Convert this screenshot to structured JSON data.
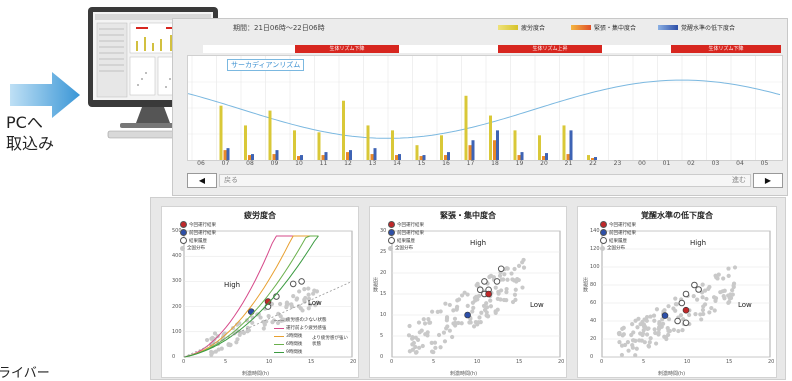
{
  "left": {
    "caption_lines": [
      "PCへ",
      "取込み"
    ],
    "bottom_caption": "ライバー"
  },
  "top_panel": {
    "period_label": "期間：21日06時～22日06時",
    "legend": [
      {
        "label": "疲労度合",
        "color": "#e8d640"
      },
      {
        "label": "緊張・集中度合",
        "color": "#e8892a"
      },
      {
        "label": "覚醒水準の低下度合",
        "color": "#3e63b4"
      }
    ],
    "rhythm_bars": [
      {
        "label": "生体リズム下降",
        "start": 6,
        "end": 10
      },
      {
        "label": "生体リズム上昇",
        "start": 14,
        "end": 18
      },
      {
        "label": "生体リズム下降",
        "start": 22,
        "end": 26
      }
    ],
    "circadian_label": "サーカディアンリズム",
    "hours": [
      "06",
      "07",
      "08",
      "09",
      "10",
      "11",
      "12",
      "13",
      "14",
      "15",
      "16",
      "17",
      "18",
      "19",
      "20",
      "21",
      "22",
      "23",
      "00",
      "01",
      "02",
      "03",
      "04",
      "05"
    ],
    "nav": {
      "prev": "◀",
      "next": "▶",
      "back": "戻る",
      "forward": "進む"
    },
    "bars": [
      {
        "hour": 7,
        "fatigue": 0.55,
        "tension": 0.1,
        "arousal": 0.12
      },
      {
        "hour": 8,
        "fatigue": 0.35,
        "tension": 0.05,
        "arousal": 0.06
      },
      {
        "hour": 9,
        "fatigue": 0.5,
        "tension": 0.06,
        "arousal": 0.1
      },
      {
        "hour": 10,
        "fatigue": 0.3,
        "tension": 0.04,
        "arousal": 0.05
      },
      {
        "hour": 11,
        "fatigue": 0.28,
        "tension": 0.05,
        "arousal": 0.08
      },
      {
        "hour": 12,
        "fatigue": 0.6,
        "tension": 0.08,
        "arousal": 0.1
      },
      {
        "hour": 13,
        "fatigue": 0.35,
        "tension": 0.06,
        "arousal": 0.12
      },
      {
        "hour": 14,
        "fatigue": 0.3,
        "tension": 0.05,
        "arousal": 0.06
      },
      {
        "hour": 15,
        "fatigue": 0.15,
        "tension": 0.04,
        "arousal": 0.05
      },
      {
        "hour": 16,
        "fatigue": 0.25,
        "tension": 0.05,
        "arousal": 0.08
      },
      {
        "hour": 17,
        "fatigue": 0.65,
        "tension": 0.15,
        "arousal": 0.2
      },
      {
        "hour": 18,
        "fatigue": 0.45,
        "tension": 0.2,
        "arousal": 0.3
      },
      {
        "hour": 19,
        "fatigue": 0.3,
        "tension": 0.05,
        "arousal": 0.08
      },
      {
        "hour": 20,
        "fatigue": 0.25,
        "tension": 0.04,
        "arousal": 0.07
      },
      {
        "hour": 21,
        "fatigue": 0.35,
        "tension": 0.06,
        "arousal": 0.3
      },
      {
        "hour": 22,
        "fatigue": 0.05,
        "tension": 0.02,
        "arousal": 0.03
      }
    ]
  },
  "charts": [
    {
      "title": "疲労度合",
      "xlabel": "刺激時間(h)",
      "ylabel": "",
      "xticks": [
        "0",
        "5",
        "10",
        "15",
        "20"
      ],
      "yticks": [
        "0",
        "100",
        "200",
        "300",
        "400",
        "500"
      ],
      "legend": [
        {
          "label": "今回運行結果",
          "color": "#c0282a"
        },
        {
          "label": "前回運行結果",
          "color": "#2d4fa8"
        },
        {
          "label": "結果履歴",
          "color": "#ffffff"
        },
        {
          "label": "全国分布",
          "color": "#c8c8c8"
        }
      ],
      "high_label": "High",
      "low_label": "Low",
      "curve_legend": [
        {
          "label": "疲労感の少ない状態",
          "color": "#999999"
        },
        {
          "label": "運行前より疲労感強",
          "color": "#d64a8a"
        },
        {
          "label": "3時間後",
          "color": "#e8a030"
        },
        {
          "label": "6時間後",
          "color": "#6ab04c"
        },
        {
          "label": "9時間後",
          "color": "#3a9a40"
        }
      ],
      "curve_note": "より疲労感が強い状態"
    },
    {
      "title": "緊張・集中度合",
      "xlabel": "刺激時間(h)",
      "ylabel": "出現数",
      "xticks": [
        "0",
        "5",
        "10",
        "15",
        "20"
      ],
      "yticks": [
        "0",
        "5",
        "10",
        "15",
        "20",
        "25",
        "30"
      ],
      "legend": [
        {
          "label": "今回運行結果",
          "color": "#c0282a"
        },
        {
          "label": "前回運行結果",
          "color": "#2d4fa8"
        },
        {
          "label": "結果履歴",
          "color": "#ffffff"
        },
        {
          "label": "全国分布",
          "color": "#c8c8c8"
        }
      ],
      "high_label": "High",
      "low_label": "Low"
    },
    {
      "title": "覚醒水準の低下度合",
      "xlabel": "刺激時間(h)",
      "ylabel": "出現数",
      "xticks": [
        "0",
        "5",
        "10",
        "15",
        "20"
      ],
      "yticks": [
        "0",
        "20",
        "40",
        "60",
        "80",
        "100",
        "120",
        "140"
      ],
      "legend": [
        {
          "label": "今回運行結果",
          "color": "#c0282a"
        },
        {
          "label": "前回運行結果",
          "color": "#2d4fa8"
        },
        {
          "label": "結果履歴",
          "color": "#ffffff"
        },
        {
          "label": "全国分布",
          "color": "#c8c8c8"
        }
      ],
      "high_label": "High",
      "low_label": "Low"
    }
  ]
}
